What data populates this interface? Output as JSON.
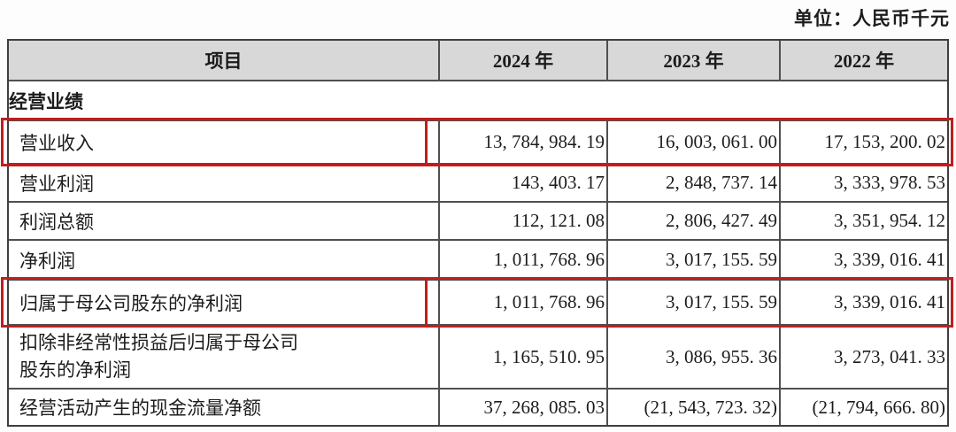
{
  "unit_label": "单位：人民币千元",
  "colors": {
    "highlight_red": "#c01e1e",
    "header_bg": "#d8d8d8",
    "grid_border": "#4f4f4f"
  },
  "table": {
    "columns": [
      "项目",
      "2024 年",
      "2023 年",
      "2022 年"
    ],
    "section_header": "经营业绩",
    "rows": [
      {
        "label": "营业收入",
        "values": [
          "13, 784, 984. 19",
          "16, 003, 061. 00",
          "17, 153, 200. 02"
        ],
        "highlighted": true
      },
      {
        "label": "营业利润",
        "values": [
          "143, 403. 17",
          "2, 848, 737. 14",
          "3, 333, 978. 53"
        ],
        "highlighted": false
      },
      {
        "label": "利润总额",
        "values": [
          "112, 121. 08",
          "2, 806, 427. 49",
          "3, 351, 954. 12"
        ],
        "highlighted": false
      },
      {
        "label": "净利润",
        "values": [
          "1, 011, 768. 96",
          "3, 017, 155. 59",
          "3, 339, 016. 41"
        ],
        "highlighted": false
      },
      {
        "label": "归属于母公司股东的净利润",
        "values": [
          "1, 011, 768. 96",
          "3, 017, 155. 59",
          "3, 339, 016. 41"
        ],
        "highlighted": true
      },
      {
        "label": "扣除非经常性损益后归属于母公司股东的净利润",
        "label_lines": [
          "扣除非经常性损益后归属于母公司",
          "股东的净利润"
        ],
        "values": [
          "1, 165, 510. 95",
          "3, 086, 955. 36",
          "3, 273, 041. 33"
        ],
        "highlighted": false
      },
      {
        "label": "经营活动产生的现金流量净额",
        "values": [
          "37, 268, 085. 03",
          "(21, 543, 723. 32)",
          "(21, 794, 666. 80)"
        ],
        "highlighted": false
      }
    ]
  }
}
